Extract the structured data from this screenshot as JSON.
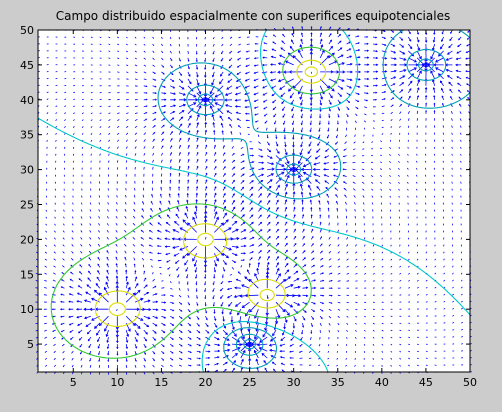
{
  "window": {
    "background": "#cccccc"
  },
  "chart_data": {
    "type": "vector-field-contour",
    "title": "Campo distribuido espacialmente con superifices equipotenciales",
    "xlabel": "",
    "ylabel": "",
    "xlim": [
      1,
      50
    ],
    "ylim": [
      1,
      50
    ],
    "x_ticks": [
      5,
      10,
      15,
      20,
      25,
      30,
      35,
      40,
      45,
      50
    ],
    "y_ticks": [
      5,
      10,
      15,
      20,
      25,
      30,
      35,
      40,
      45,
      50
    ],
    "grid": "off",
    "field_grid_step": 1,
    "sources": [
      {
        "x": 10,
        "y": 10,
        "type": "source"
      },
      {
        "x": 20,
        "y": 20,
        "type": "source"
      },
      {
        "x": 27,
        "y": 12,
        "type": "source"
      },
      {
        "x": 25,
        "y": 5,
        "type": "sink"
      },
      {
        "x": 30,
        "y": 30,
        "type": "sink"
      },
      {
        "x": 20,
        "y": 40,
        "type": "sink"
      },
      {
        "x": 32,
        "y": 44,
        "type": "source"
      },
      {
        "x": 45,
        "y": 45,
        "type": "sink"
      }
    ],
    "colors": {
      "arrows": "#0000ff",
      "contour_outer": "#00c8c8",
      "contour_teal": "#00a0b4",
      "contour_green": "#32c832",
      "contour_yellow": "#dcdc00",
      "plot_bg": "#ffffff"
    }
  }
}
